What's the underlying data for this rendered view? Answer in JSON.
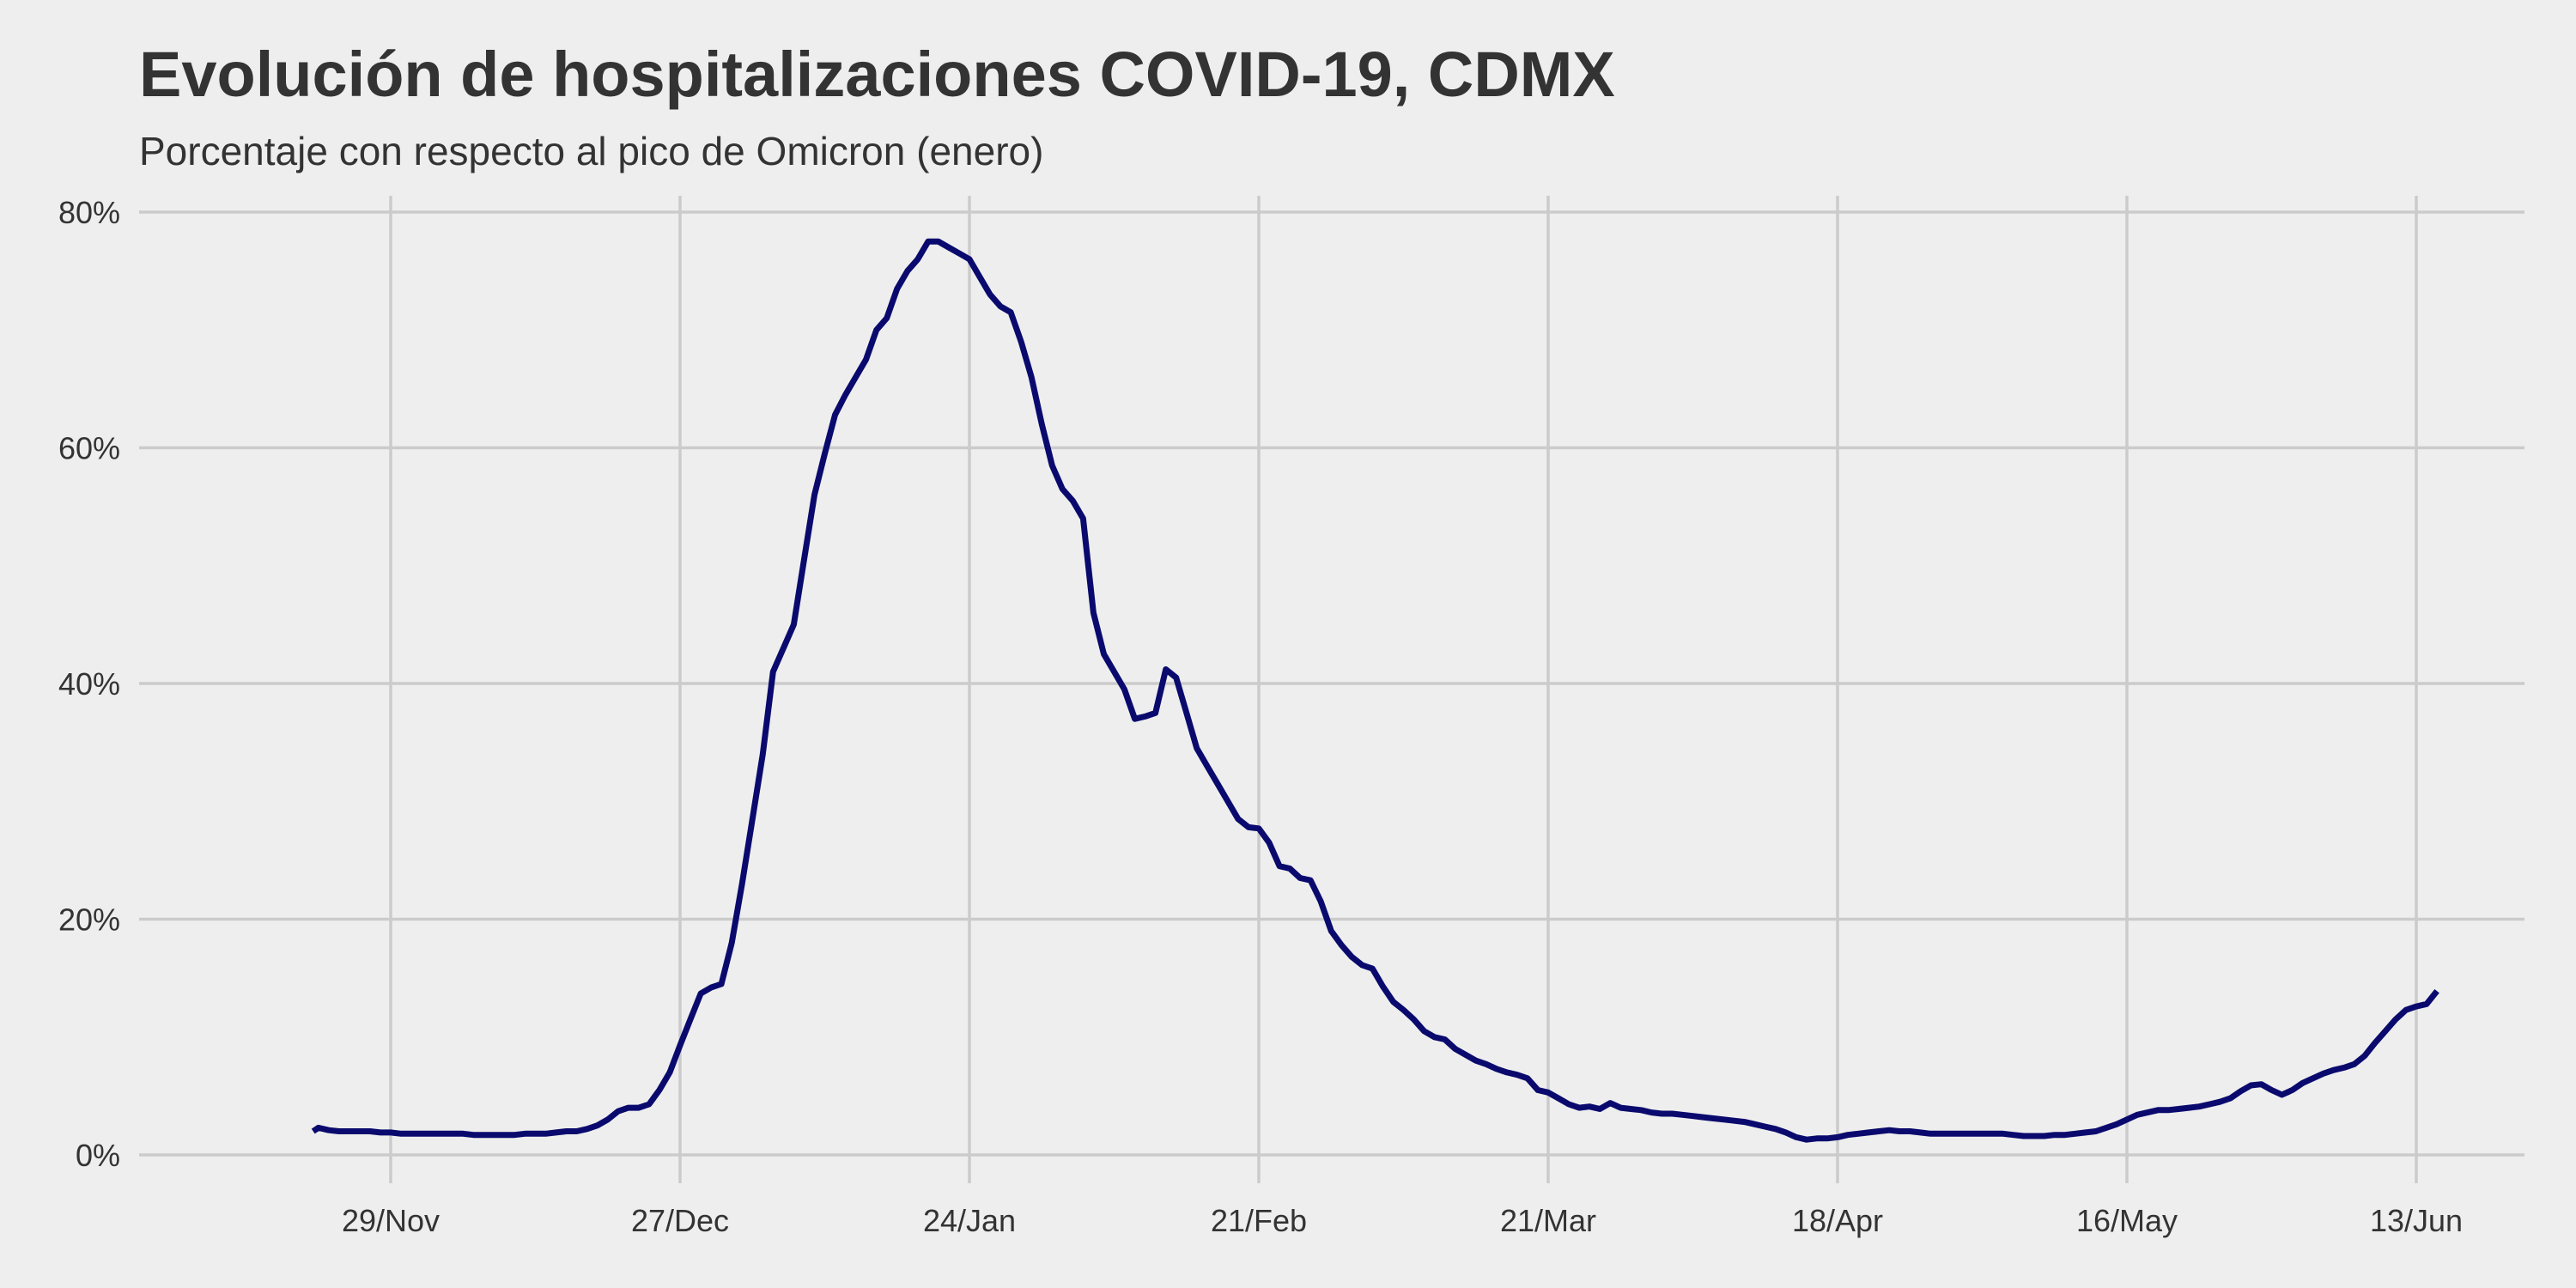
{
  "colors": {
    "background": "#eeeeee",
    "grid": "#cbcbcb",
    "text": "#333333",
    "line": "#0a0a6e"
  },
  "chart_data": {
    "type": "line",
    "title": "Evolución de hospitalizaciones COVID-19, CDMX",
    "subtitle": "Porcentaje con respecto al pico de Omicron (enero)",
    "xlabel": "",
    "ylabel": "",
    "x_unit": "days from 29/Nov",
    "xlim": [
      -24,
      206
    ],
    "ylim": [
      0,
      80
    ],
    "x_ticks": [
      {
        "label": "29/Nov",
        "x": 0
      },
      {
        "label": "27/Dec",
        "x": 28
      },
      {
        "label": "24/Jan",
        "x": 56
      },
      {
        "label": "21/Feb",
        "x": 84
      },
      {
        "label": "21/Mar",
        "x": 112
      },
      {
        "label": "18/Apr",
        "x": 140
      },
      {
        "label": "16/May",
        "x": 168
      },
      {
        "label": "13/Jun",
        "x": 196
      }
    ],
    "y_ticks": [
      {
        "label": "0%",
        "y": 0
      },
      {
        "label": "20%",
        "y": 20
      },
      {
        "label": "40%",
        "y": 40
      },
      {
        "label": "60%",
        "y": 60
      },
      {
        "label": "80%",
        "y": 80
      }
    ],
    "grid": true,
    "legend": "none",
    "series": [
      {
        "points": [
          [
            -7.5,
            2.0
          ],
          [
            -7,
            2.3
          ],
          [
            -6,
            2.1
          ],
          [
            -5,
            2.0
          ],
          [
            -4,
            2.0
          ],
          [
            -3,
            2.0
          ],
          [
            -2,
            2.0
          ],
          [
            -1,
            1.9
          ],
          [
            0,
            1.9
          ],
          [
            1,
            1.8
          ],
          [
            2,
            1.8
          ],
          [
            3,
            1.8
          ],
          [
            4,
            1.8
          ],
          [
            5,
            1.8
          ],
          [
            6,
            1.8
          ],
          [
            7,
            1.8
          ],
          [
            8,
            1.7
          ],
          [
            9,
            1.7
          ],
          [
            10,
            1.7
          ],
          [
            11,
            1.7
          ],
          [
            12,
            1.7
          ],
          [
            13,
            1.8
          ],
          [
            14,
            1.8
          ],
          [
            15,
            1.8
          ],
          [
            16,
            1.9
          ],
          [
            17,
            2.0
          ],
          [
            18,
            2.0
          ],
          [
            19,
            2.2
          ],
          [
            20,
            2.5
          ],
          [
            21,
            3.0
          ],
          [
            22,
            3.7
          ],
          [
            23,
            4.0
          ],
          [
            24,
            4.0
          ],
          [
            25,
            4.3
          ],
          [
            26,
            5.5
          ],
          [
            27,
            7.0
          ],
          [
            28,
            9.3
          ],
          [
            29,
            11.5
          ],
          [
            30,
            13.7
          ],
          [
            31,
            14.2
          ],
          [
            32,
            14.5
          ],
          [
            33,
            18.0
          ],
          [
            34,
            23.0
          ],
          [
            35,
            28.5
          ],
          [
            36,
            34.0
          ],
          [
            37,
            41.0
          ],
          [
            38,
            43.0
          ],
          [
            39,
            45.0
          ],
          [
            40,
            50.5
          ],
          [
            41,
            56.0
          ],
          [
            42,
            59.5
          ],
          [
            43,
            62.8
          ],
          [
            44,
            64.5
          ],
          [
            45,
            66.0
          ],
          [
            46,
            67.5
          ],
          [
            47,
            70.0
          ],
          [
            48,
            71.0
          ],
          [
            49,
            73.5
          ],
          [
            50,
            75.0
          ],
          [
            51,
            76.0
          ],
          [
            52,
            77.5
          ],
          [
            53,
            77.5
          ],
          [
            54,
            77.0
          ],
          [
            55,
            76.5
          ],
          [
            56,
            76.0
          ],
          [
            57,
            74.5
          ],
          [
            58,
            73.0
          ],
          [
            59,
            72.0
          ],
          [
            60,
            71.5
          ],
          [
            61,
            69.0
          ],
          [
            62,
            66.0
          ],
          [
            63,
            62.0
          ],
          [
            64,
            58.5
          ],
          [
            65,
            56.5
          ],
          [
            66,
            55.5
          ],
          [
            67,
            54.0
          ],
          [
            68,
            46.0
          ],
          [
            69,
            42.5
          ],
          [
            70,
            41.0
          ],
          [
            71,
            39.5
          ],
          [
            72,
            37.0
          ],
          [
            73,
            37.2
          ],
          [
            74,
            37.5
          ],
          [
            75,
            41.2
          ],
          [
            76,
            40.5
          ],
          [
            77,
            37.5
          ],
          [
            78,
            34.5
          ],
          [
            79,
            33.0
          ],
          [
            80,
            31.5
          ],
          [
            81,
            30.0
          ],
          [
            82,
            28.5
          ],
          [
            83,
            27.8
          ],
          [
            84,
            27.7
          ],
          [
            85,
            26.5
          ],
          [
            86,
            24.5
          ],
          [
            87,
            24.3
          ],
          [
            88,
            23.5
          ],
          [
            89,
            23.3
          ],
          [
            90,
            21.5
          ],
          [
            91,
            19.0
          ],
          [
            92,
            17.8
          ],
          [
            93,
            16.8
          ],
          [
            94,
            16.1
          ],
          [
            95,
            15.8
          ],
          [
            96,
            14.3
          ],
          [
            97,
            13.0
          ],
          [
            98,
            12.3
          ],
          [
            99,
            11.5
          ],
          [
            100,
            10.5
          ],
          [
            101,
            10.0
          ],
          [
            102,
            9.8
          ],
          [
            103,
            9.0
          ],
          [
            104,
            8.5
          ],
          [
            105,
            8.0
          ],
          [
            106,
            7.7
          ],
          [
            107,
            7.3
          ],
          [
            108,
            7.0
          ],
          [
            109,
            6.8
          ],
          [
            110,
            6.5
          ],
          [
            111,
            5.5
          ],
          [
            112,
            5.3
          ],
          [
            113,
            4.8
          ],
          [
            114,
            4.3
          ],
          [
            115,
            4.0
          ],
          [
            116,
            4.1
          ],
          [
            117,
            3.9
          ],
          [
            118,
            4.4
          ],
          [
            119,
            4.0
          ],
          [
            120,
            3.9
          ],
          [
            121,
            3.8
          ],
          [
            122,
            3.6
          ],
          [
            123,
            3.5
          ],
          [
            124,
            3.5
          ],
          [
            125,
            3.4
          ],
          [
            126,
            3.3
          ],
          [
            127,
            3.2
          ],
          [
            128,
            3.1
          ],
          [
            129,
            3.0
          ],
          [
            130,
            2.9
          ],
          [
            131,
            2.8
          ],
          [
            132,
            2.6
          ],
          [
            133,
            2.4
          ],
          [
            134,
            2.2
          ],
          [
            135,
            1.9
          ],
          [
            136,
            1.5
          ],
          [
            137,
            1.3
          ],
          [
            138,
            1.4
          ],
          [
            139,
            1.4
          ],
          [
            140,
            1.5
          ],
          [
            141,
            1.7
          ],
          [
            142,
            1.8
          ],
          [
            143,
            1.9
          ],
          [
            144,
            2.0
          ],
          [
            145,
            2.1
          ],
          [
            146,
            2.0
          ],
          [
            147,
            2.0
          ],
          [
            148,
            1.9
          ],
          [
            149,
            1.8
          ],
          [
            150,
            1.8
          ],
          [
            151,
            1.8
          ],
          [
            152,
            1.8
          ],
          [
            153,
            1.8
          ],
          [
            154,
            1.8
          ],
          [
            155,
            1.8
          ],
          [
            156,
            1.8
          ],
          [
            157,
            1.7
          ],
          [
            158,
            1.6
          ],
          [
            159,
            1.6
          ],
          [
            160,
            1.6
          ],
          [
            161,
            1.7
          ],
          [
            162,
            1.7
          ],
          [
            163,
            1.8
          ],
          [
            164,
            1.9
          ],
          [
            165,
            2.0
          ],
          [
            166,
            2.3
          ],
          [
            167,
            2.6
          ],
          [
            168,
            3.0
          ],
          [
            169,
            3.4
          ],
          [
            170,
            3.6
          ],
          [
            171,
            3.8
          ],
          [
            172,
            3.8
          ],
          [
            173,
            3.9
          ],
          [
            174,
            4.0
          ],
          [
            175,
            4.1
          ],
          [
            176,
            4.3
          ],
          [
            177,
            4.5
          ],
          [
            178,
            4.8
          ],
          [
            179,
            5.4
          ],
          [
            180,
            5.9
          ],
          [
            181,
            6.0
          ],
          [
            182,
            5.5
          ],
          [
            183,
            5.1
          ],
          [
            184,
            5.5
          ],
          [
            185,
            6.1
          ],
          [
            186,
            6.5
          ],
          [
            187,
            6.9
          ],
          [
            188,
            7.2
          ],
          [
            189,
            7.4
          ],
          [
            190,
            7.7
          ],
          [
            191,
            8.4
          ],
          [
            192,
            9.5
          ],
          [
            193,
            10.5
          ],
          [
            194,
            11.5
          ],
          [
            195,
            12.3
          ],
          [
            196,
            12.6
          ],
          [
            197,
            12.8
          ],
          [
            198,
            13.9
          ]
        ]
      }
    ]
  }
}
